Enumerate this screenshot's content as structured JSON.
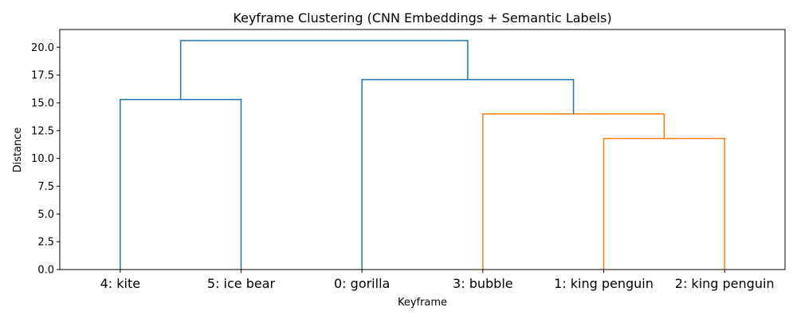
{
  "chart_data": {
    "type": "dendrogram",
    "title": "Keyframe Clustering (CNN Embeddings + Semantic Labels)",
    "xlabel": "Keyframe",
    "ylabel": "Distance",
    "ylim": [
      0,
      21.6
    ],
    "yticks": [
      "0.0",
      "2.5",
      "5.0",
      "7.5",
      "10.0",
      "12.5",
      "15.0",
      "17.5",
      "20.0"
    ],
    "leaves": [
      "4: kite",
      "5: ice bear",
      "0: gorilla",
      "3: bubble",
      "1: king penguin",
      "2: king penguin"
    ],
    "colors": {
      "above_threshold": "#1f77b4",
      "cluster": "#ff7f0e"
    },
    "links": [
      {
        "left": 0,
        "right": 1,
        "height": 15.3,
        "color": "above_threshold"
      },
      {
        "left": 4,
        "right": 5,
        "height": 11.8,
        "color": "cluster"
      },
      {
        "left": 3,
        "right": 7,
        "height": 14.0,
        "color": "cluster"
      },
      {
        "left": 2,
        "right": 8,
        "height": 17.1,
        "color": "above_threshold"
      },
      {
        "left": 6,
        "right": 9,
        "height": 20.6,
        "color": "above_threshold"
      }
    ]
  }
}
